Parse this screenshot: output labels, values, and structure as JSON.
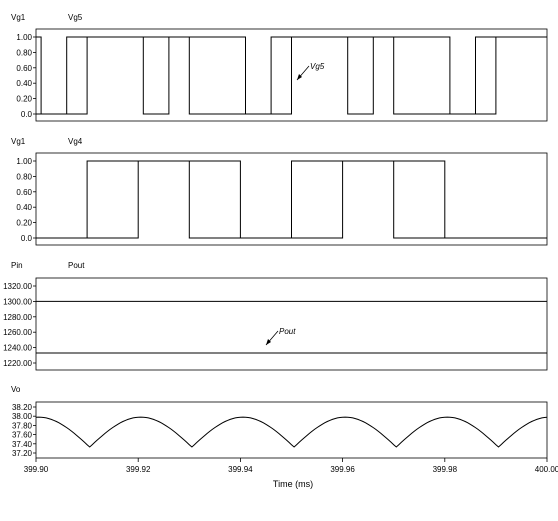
{
  "chart_data": [
    {
      "type": "line",
      "legend": [
        "Vg1",
        "Vg5"
      ],
      "yticks": [
        "1.00",
        "0.80",
        "0.60",
        "0.40",
        "0.20",
        "0.0"
      ],
      "ylim": [
        0,
        1
      ],
      "series": [
        {
          "name": "Vg1",
          "points": [
            [
              399.9,
              0
            ],
            [
              399.91,
              0
            ],
            [
              399.91,
              1
            ],
            [
              399.93,
              1
            ],
            [
              399.93,
              0
            ],
            [
              399.95,
              0
            ],
            [
              399.95,
              1
            ],
            [
              399.97,
              1
            ],
            [
              399.97,
              0
            ],
            [
              399.99,
              0
            ],
            [
              399.99,
              1
            ],
            [
              400.0,
              1
            ]
          ]
        },
        {
          "name": "Vg5",
          "points": [
            [
              399.9,
              1
            ],
            [
              399.901,
              1
            ],
            [
              399.901,
              0
            ],
            [
              399.906,
              0
            ],
            [
              399.906,
              1
            ],
            [
              399.921,
              1
            ],
            [
              399.921,
              0
            ],
            [
              399.926,
              0
            ],
            [
              399.926,
              1
            ],
            [
              399.941,
              1
            ],
            [
              399.941,
              0
            ],
            [
              399.946,
              0
            ],
            [
              399.946,
              1
            ],
            [
              399.961,
              1
            ],
            [
              399.961,
              0
            ],
            [
              399.966,
              0
            ],
            [
              399.966,
              1
            ],
            [
              399.981,
              1
            ],
            [
              399.981,
              0
            ],
            [
              399.986,
              0
            ],
            [
              399.986,
              1
            ],
            [
              400.0,
              1
            ]
          ]
        }
      ],
      "annotation": "Vg5"
    },
    {
      "type": "line",
      "legend": [
        "Vg1",
        "Vg4"
      ],
      "yticks": [
        "1.00",
        "0.80",
        "0.60",
        "0.40",
        "0.20",
        "0.0"
      ],
      "ylim": [
        0,
        1
      ],
      "series": [
        {
          "name": "Vg1",
          "points": [
            [
              399.9,
              0
            ],
            [
              399.91,
              0
            ],
            [
              399.91,
              1
            ],
            [
              399.93,
              1
            ],
            [
              399.93,
              0
            ],
            [
              399.95,
              0
            ],
            [
              399.95,
              1
            ],
            [
              399.97,
              1
            ],
            [
              399.97,
              0
            ],
            [
              400.0,
              0
            ]
          ]
        },
        {
          "name": "Vg4",
          "points": [
            [
              399.9,
              0
            ],
            [
              399.92,
              0
            ],
            [
              399.92,
              1
            ],
            [
              399.94,
              1
            ],
            [
              399.94,
              0
            ],
            [
              399.96,
              0
            ],
            [
              399.96,
              1
            ],
            [
              399.98,
              1
            ],
            [
              399.98,
              0
            ],
            [
              400.0,
              0
            ]
          ]
        }
      ]
    },
    {
      "type": "line",
      "legend": [
        "Pin",
        "Pout"
      ],
      "yticks": [
        "1320.00",
        "1300.00",
        "1280.00",
        "1260.00",
        "1240.00",
        "1220.00"
      ],
      "ylim": [
        1215,
        1330
      ],
      "series": [
        {
          "name": "Pin",
          "points": [
            [
              399.9,
              1300
            ],
            [
              400.0,
              1300
            ]
          ]
        },
        {
          "name": "Pout",
          "points": [
            [
              399.9,
              1233
            ],
            [
              400.0,
              1233
            ]
          ]
        }
      ],
      "annotation": "Pout"
    },
    {
      "type": "line",
      "legend": [
        "Vo"
      ],
      "yticks": [
        "38.20",
        "38.00",
        "37.80",
        "37.60",
        "37.40",
        "37.20"
      ],
      "ylim": [
        37.15,
        38.25
      ],
      "series": [
        {
          "name": "Vo",
          "ripple": {
            "period": 0.02,
            "max": 37.98,
            "min": 37.33,
            "peak_phase": 0.0045,
            "first_min": 399.9105
          }
        }
      ]
    }
  ],
  "x_axis": {
    "ticks": [
      "399.90",
      "399.92",
      "399.94",
      "399.96",
      "399.98",
      "400.00"
    ],
    "xlim": [
      399.9,
      400.0
    ],
    "label": "Time (ms)"
  }
}
